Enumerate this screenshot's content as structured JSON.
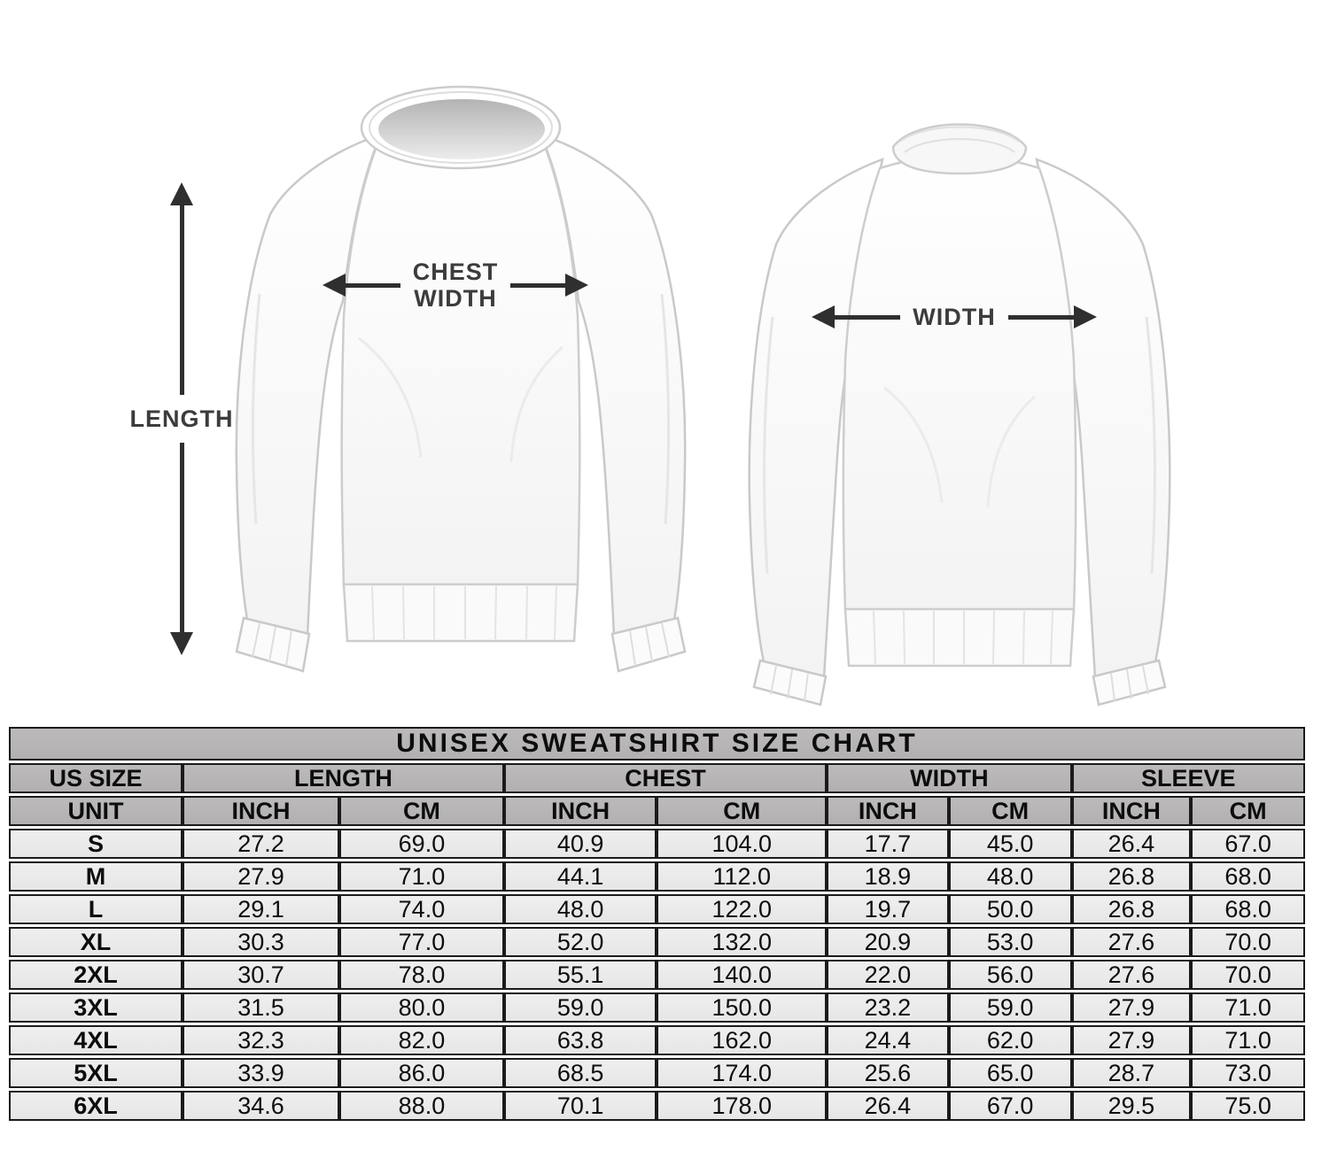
{
  "diagram": {
    "length_label": "LENGTH",
    "front": {
      "chest_width_line1": "CHEST",
      "chest_width_line2": "WIDTH"
    },
    "back": {
      "width_label": "WIDTH"
    }
  },
  "chart_data": {
    "type": "table",
    "title": "UNISEX SWEATSHIRT SIZE CHART",
    "header_groups": [
      "US SIZE",
      "LENGTH",
      "CHEST",
      "WIDTH",
      "SLEEVE"
    ],
    "unit_row": [
      "UNIT",
      "INCH",
      "CM",
      "INCH",
      "CM",
      "INCH",
      "CM",
      "INCH",
      "CM"
    ],
    "rows": [
      [
        "S",
        "27.2",
        "69.0",
        "40.9",
        "104.0",
        "17.7",
        "45.0",
        "26.4",
        "67.0"
      ],
      [
        "M",
        "27.9",
        "71.0",
        "44.1",
        "112.0",
        "18.9",
        "48.0",
        "26.8",
        "68.0"
      ],
      [
        "L",
        "29.1",
        "74.0",
        "48.0",
        "122.0",
        "19.7",
        "50.0",
        "26.8",
        "68.0"
      ],
      [
        "XL",
        "30.3",
        "77.0",
        "52.0",
        "132.0",
        "20.9",
        "53.0",
        "27.6",
        "70.0"
      ],
      [
        "2XL",
        "30.7",
        "78.0",
        "55.1",
        "140.0",
        "22.0",
        "56.0",
        "27.6",
        "70.0"
      ],
      [
        "3XL",
        "31.5",
        "80.0",
        "59.0",
        "150.0",
        "23.2",
        "59.0",
        "27.9",
        "71.0"
      ],
      [
        "4XL",
        "32.3",
        "82.0",
        "63.8",
        "162.0",
        "24.4",
        "62.0",
        "27.9",
        "71.0"
      ],
      [
        "5XL",
        "33.9",
        "86.0",
        "68.5",
        "174.0",
        "25.6",
        "65.0",
        "28.7",
        "73.0"
      ],
      [
        "6XL",
        "34.6",
        "88.0",
        "70.1",
        "178.0",
        "26.4",
        "67.0",
        "29.5",
        "75.0"
      ]
    ]
  },
  "colors": {
    "header_bg": "#b2b0b1",
    "row_bg": "#e6e6e6",
    "border": "#1b1b1b",
    "arrow": "#2f2f2f"
  }
}
